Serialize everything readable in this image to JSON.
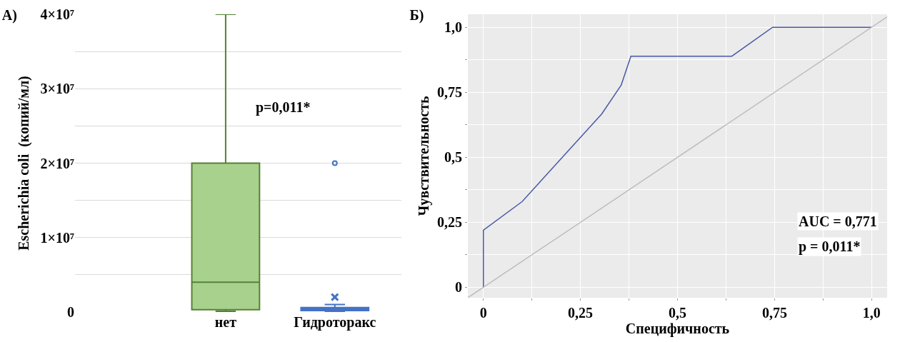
{
  "chart_data": [
    {
      "type": "box",
      "title": "A)",
      "ylabel": "Escherichia coli  (копий/мл)",
      "categories": [
        "нет",
        "Гидроторакс"
      ],
      "boxes": [
        {
          "low": 100000,
          "q1": 300000,
          "median": 4000000,
          "q3": 20000000,
          "high": 40000000
        },
        {
          "low": 100000,
          "q1": 200000,
          "median": 500000,
          "q3": 600000,
          "high": 1000000,
          "mean": 2000000,
          "outliers": [
            20000000
          ]
        }
      ],
      "colors": [
        "#548235",
        "#4472c4"
      ],
      "ylim": [
        0,
        40000000
      ],
      "yticks": [
        0,
        {
          "value": 5000000,
          "label": null
        },
        {
          "value": 10000000,
          "label": "1×10⁷"
        },
        {
          "value": 15000000,
          "label": null
        },
        {
          "value": 20000000,
          "label": "2×10⁷"
        },
        {
          "value": 25000000,
          "label": null
        },
        {
          "value": 30000000,
          "label": "3×10⁷"
        },
        {
          "value": 35000000,
          "label": null
        },
        {
          "value": 40000000,
          "label": "4×10⁷"
        }
      ],
      "grid": "y",
      "annotations": [
        "p=0,011*"
      ]
    },
    {
      "type": "line",
      "title": "Б)",
      "xlabel": "Специфичность",
      "ylabel": "Чувствительность",
      "series": [
        {
          "color": "#4a5aa8",
          "x": [
            0,
            0,
            0.1,
            0.305,
            0.355,
            0.38,
            0.64,
            0.745,
            1
          ],
          "values": [
            0,
            0.22,
            0.33,
            0.667,
            0.778,
            0.889,
            0.889,
            1,
            1
          ]
        },
        {
          "color": "#bdbdbd",
          "x": [
            -0.04,
            1.04
          ],
          "values": [
            -0.04,
            1.04
          ]
        }
      ],
      "xlim": [
        -0.04,
        1.04
      ],
      "ylim": [
        -0.04,
        1.05
      ],
      "xticks": [
        {
          "value": 0,
          "label": "0"
        },
        {
          "value": 0.125,
          "label": null
        },
        {
          "value": 0.25,
          "label": "0,25"
        },
        {
          "value": 0.375,
          "label": null
        },
        {
          "value": 0.5,
          "label": "0,5"
        },
        {
          "value": 0.625,
          "label": null
        },
        {
          "value": 0.75,
          "label": "0,75"
        },
        {
          "value": 0.875,
          "label": null
        },
        {
          "value": 1,
          "label": "1,0"
        }
      ],
      "yticks": [
        {
          "value": 0,
          "label": "0"
        },
        {
          "value": 0.125,
          "label": null
        },
        {
          "value": 0.25,
          "label": "0,25"
        },
        {
          "value": 0.375,
          "label": null
        },
        {
          "value": 0.5,
          "label": "0,5"
        },
        {
          "value": 0.625,
          "label": null
        },
        {
          "value": 0.75,
          "label": "0,75"
        },
        {
          "value": 0.875,
          "label": null
        },
        {
          "value": 1,
          "label": "1,0"
        }
      ],
      "grid": true,
      "annotations": [
        "AUC = 0,771",
        "p = 0,011*"
      ]
    }
  ]
}
